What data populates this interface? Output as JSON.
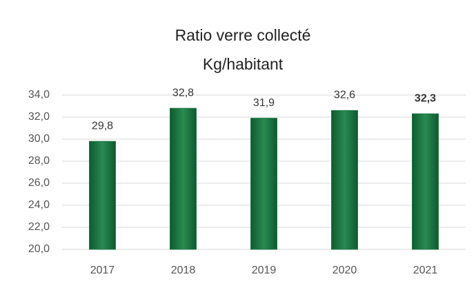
{
  "chart_data": {
    "type": "bar",
    "title": "Ratio verre collecté",
    "subtitle": "Kg/habitant",
    "categories": [
      "2017",
      "2018",
      "2019",
      "2020",
      "2021"
    ],
    "values": [
      29.8,
      32.8,
      31.9,
      32.6,
      32.3
    ],
    "value_labels": [
      "29,8",
      "32,8",
      "31,9",
      "32,6",
      "32,3"
    ],
    "color": "#1e7a44",
    "ylim": [
      20,
      34
    ],
    "yticks": [
      {
        "value": 20,
        "label": "20,0"
      },
      {
        "value": 22,
        "label": "22,0"
      },
      {
        "value": 24,
        "label": "24,0"
      },
      {
        "value": 26,
        "label": "26,0"
      },
      {
        "value": 28,
        "label": "28,0"
      },
      {
        "value": 30,
        "label": "30,0"
      },
      {
        "value": 32,
        "label": "32,0"
      },
      {
        "value": 34,
        "label": "34,0"
      }
    ],
    "grid": true
  }
}
